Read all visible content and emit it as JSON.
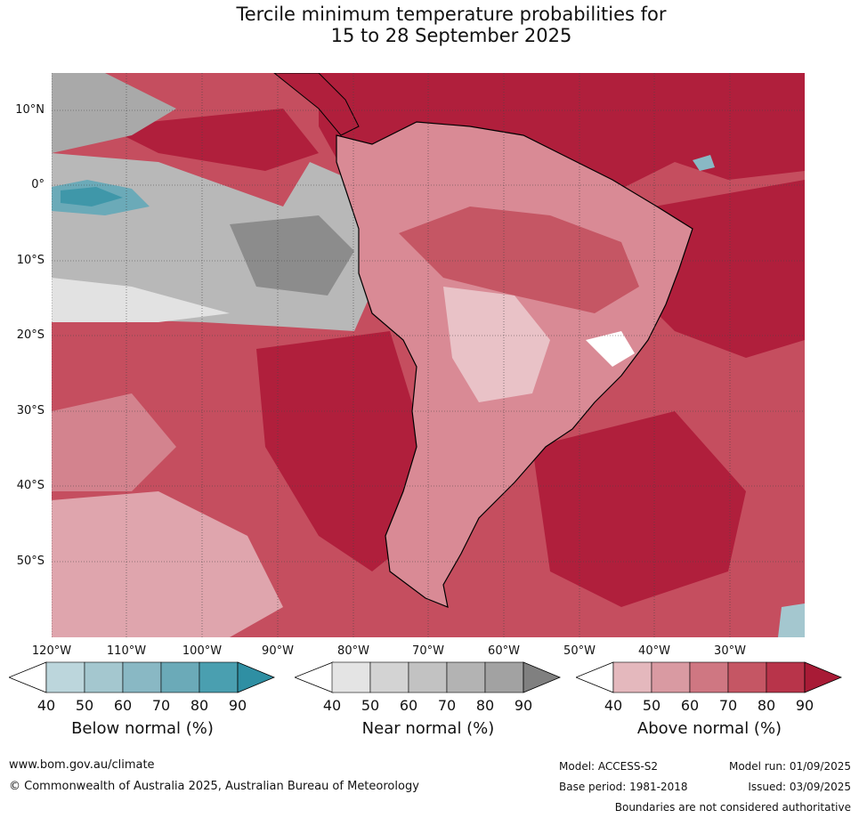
{
  "title": {
    "line1": "Tercile minimum temperature probabilities for",
    "line2": "15 to 28 September 2025"
  },
  "map": {
    "lat_labels": [
      "10°N",
      "0°",
      "10°S",
      "20°S",
      "30°S",
      "40°S",
      "50°S"
    ],
    "lon_labels": [
      "120°W",
      "110°W",
      "100°W",
      "90°W",
      "80°W",
      "70°W",
      "60°W",
      "50°W",
      "40°W",
      "30°W"
    ],
    "ocean_color": "#c54e5f",
    "land_color": "#d98a95"
  },
  "legend": {
    "below": {
      "label": "Below normal (%)",
      "ticks": [
        "40",
        "50",
        "60",
        "70",
        "80",
        "90"
      ],
      "colors": [
        "#bcd6dc",
        "#a4c7cf",
        "#89b8c4",
        "#6baab8",
        "#4a9fb0",
        "#2f8fa3"
      ]
    },
    "near": {
      "label": "Near normal (%)",
      "ticks": [
        "40",
        "50",
        "60",
        "70",
        "80",
        "90"
      ],
      "colors": [
        "#e4e4e4",
        "#d3d3d3",
        "#c2c2c2",
        "#b3b3b3",
        "#a2a2a2",
        "#808080"
      ]
    },
    "above": {
      "label": "Above normal (%)",
      "ticks": [
        "40",
        "50",
        "60",
        "70",
        "80",
        "90"
      ],
      "colors": [
        "#e4b8bd",
        "#d99aa2",
        "#cf7782",
        "#c55664",
        "#b8344a",
        "#a81b36"
      ]
    }
  },
  "footer": {
    "url": "www.bom.gov.au/climate",
    "copyright": "© Commonwealth of Australia 2025, Australian Bureau of Meteorology",
    "model": "Model: ACCESS-S2",
    "model_run": "Model run: 01/09/2025",
    "base_period": "Base period: 1981-2018",
    "issued": "Issued: 03/09/2025",
    "disclaimer": "Boundaries are not considered authoritative"
  }
}
